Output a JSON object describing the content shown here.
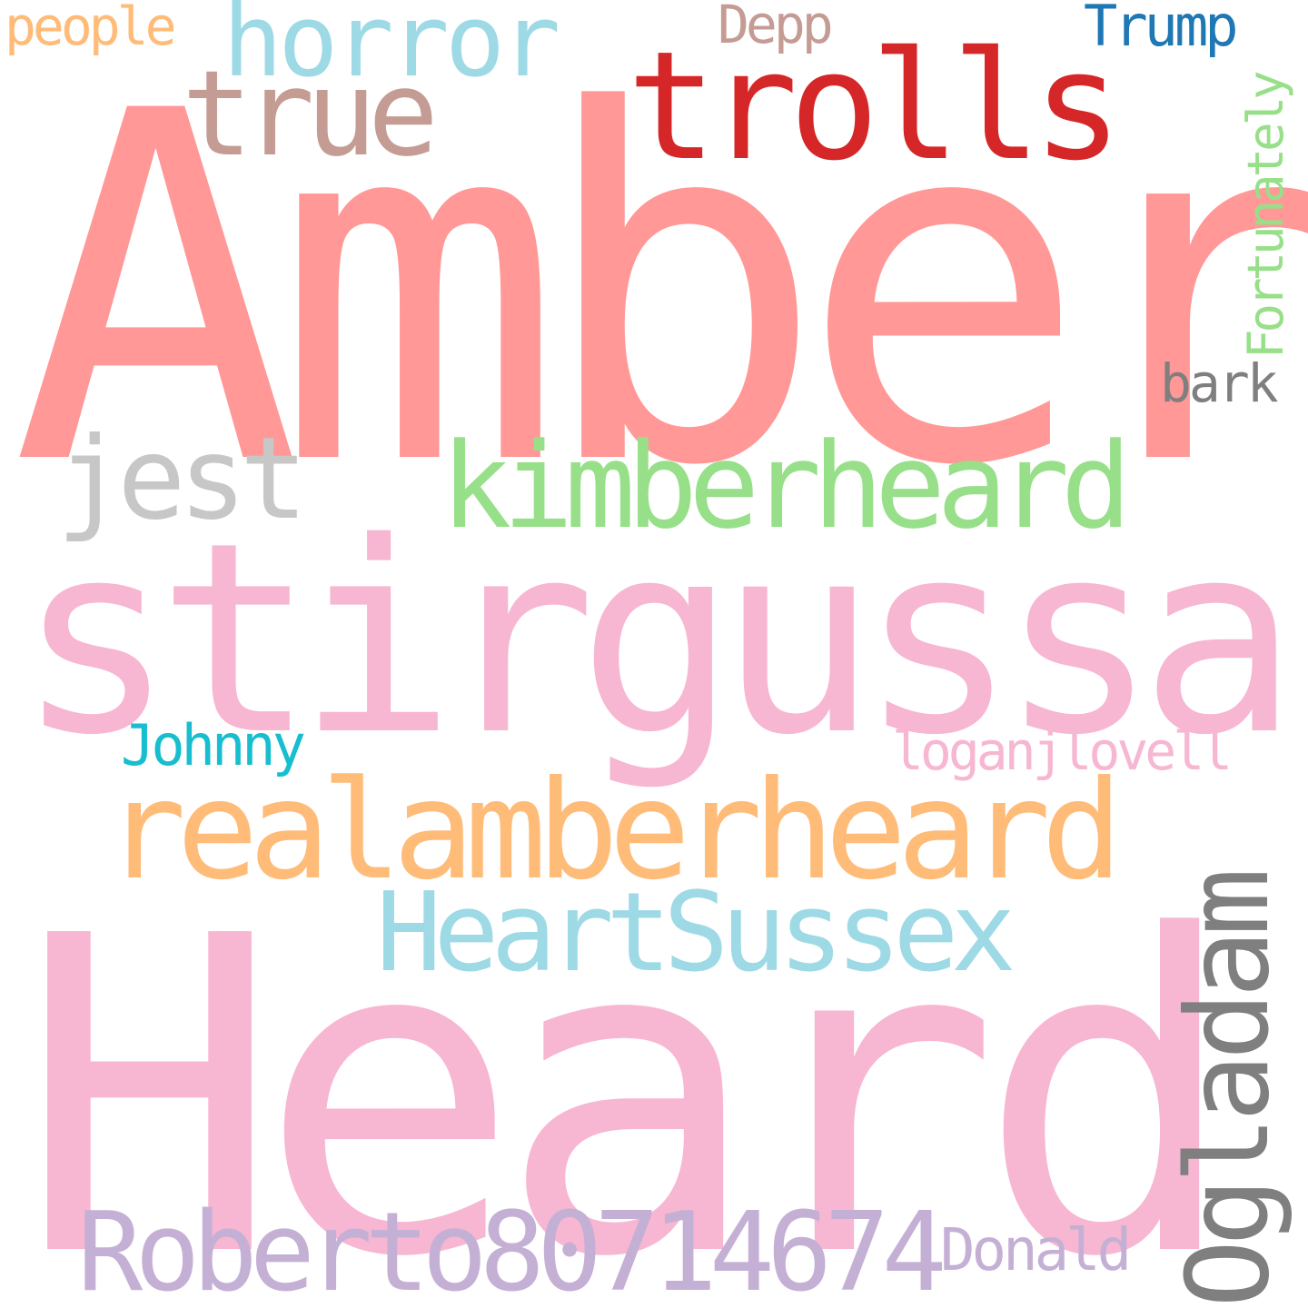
{
  "words": {
    "amber": {
      "text": "Amber",
      "color": "#ff9896"
    },
    "heard": {
      "text": "Heard",
      "color": "#f7b6d2"
    },
    "stirgussa": {
      "text": "stirgussa",
      "color": "#f7b6d2"
    },
    "realamberheard": {
      "text": "realamberheard",
      "color": "#ffbb78"
    },
    "trolls": {
      "text": "trolls",
      "color": "#d62728"
    },
    "kimberheard": {
      "text": "kimberheard",
      "color": "#98df8a"
    },
    "heartsussex": {
      "text": "HeartSussex",
      "color": "#9edae5"
    },
    "roberto": {
      "text": "Roberto80714674",
      "color": "#c5b0d5"
    },
    "ogladam": {
      "text": "Ogladam",
      "color": "#7f7f7f"
    },
    "horror": {
      "text": "horror",
      "color": "#9edae5"
    },
    "true": {
      "text": "true",
      "color": "#c49c94"
    },
    "jest": {
      "text": "jest",
      "color": "#c7c7c7"
    },
    "fortunately": {
      "text": "Fortunately",
      "color": "#98df8a"
    },
    "loganjlovell": {
      "text": "loganjlovell",
      "color": "#f7b6d2"
    },
    "johnny": {
      "text": "Johnny",
      "color": "#17becf"
    },
    "donald": {
      "text": "Donald",
      "color": "#c5b0d5"
    },
    "people": {
      "text": "people",
      "color": "#ffbb78"
    },
    "depp": {
      "text": "Depp",
      "color": "#c49c94"
    },
    "trump": {
      "text": "Trump",
      "color": "#1f77b4"
    },
    "bark": {
      "text": "bark",
      "color": "#7f7f7f"
    }
  }
}
